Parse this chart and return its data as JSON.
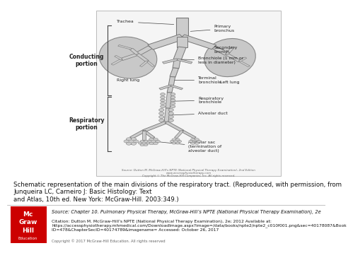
{
  "bg_color": "#ffffff",
  "lung_fill": "#c8c8c8",
  "lung_edge": "#888888",
  "tube_fill": "#cccccc",
  "tube_edge": "#777777",
  "bracket_color": "#444444",
  "text_color": "#222222",
  "small_text_color": "#555555",
  "annotation_fontsize": 4.5,
  "caption_fontsize": 6.2,
  "source_fontsize": 4.8,
  "label_bold_fontsize": 5.5,
  "title_text": "Schematic representation of the main divisions of the respiratory tract. (Reproduced, with permission, from Junqueira LC, Carneiro J: Basic Histology: Text\nand Atlas, 10th ed. New York: McGraw-Hill. 2003:349.)",
  "source_line1": "Source: Chapter 10. Pulmonary Physical Therapy, McGraw-Hill’s NPTE (National Physical Therapy Examination), 2e",
  "citation_line": "Citation: Dutton M. McGraw-Hill’s NPTE (National Physical Therapy Examination), 2e; 2012 Available at:\nhttps://accessphysiotherapy.mhmedical.com/DownloadImage.aspx?image=/data/books/npte2/npte2_c010f001.png&sec=40178087&Book\nID=478&ChapterSecID=40174789&imagename= Accessed: October 26, 2017",
  "copyright_text": "Copyright © 2017 McGraw-Hill Education. All rights reserved",
  "source_inside_1": "Source: Dutton M. McGraw-Hill's NPTE (National Physical Therapy Examination), 2nd Edition",
  "source_inside_2": "www.accessphysiotherapy.com",
  "source_inside_3": "Copyright © The McGraw-Hill Companies, Inc. All rights reserved.",
  "labels": {
    "trachea": "Trachea",
    "primary_bronchus": "Primary\nbronchus",
    "secondary_bronchus": "Secondary\nbronch.",
    "right_lung": "Right lung",
    "left_lung": "Left lung",
    "bronchiole": "Bronchiole (1 mm or\nless in diameter)",
    "terminal_bronchiole": "Terminal\nbronchiole",
    "respiratory_bronchiole": "Respiratory\nbronchiole",
    "alveolar_duct": "Alveolar duct",
    "alveolar_sac": "Alveolar sac\n(termination of\nalveolar duct)",
    "conducting_portion": "Conducting\nportion",
    "respiratory_portion": "Respiratory\nportion"
  },
  "mcgraw_red": "#cc0000"
}
